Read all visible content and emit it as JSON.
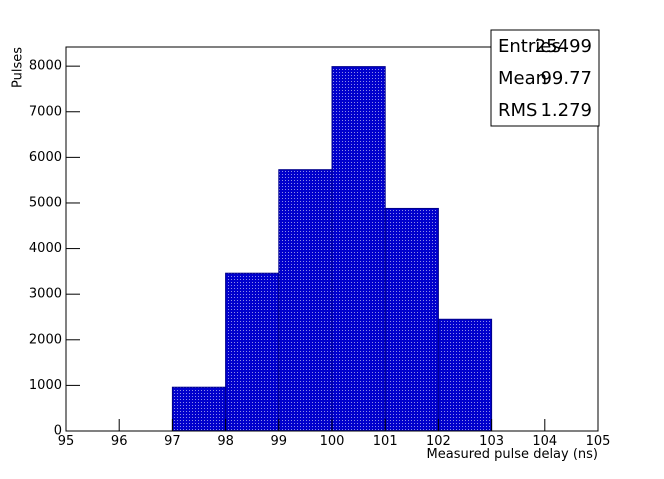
{
  "chart_data": {
    "type": "histogram",
    "x_label": "Measured pulse delay (ns)",
    "y_label": "Pulses",
    "bins": [
      95,
      96,
      97,
      98,
      99,
      100,
      101,
      102,
      103,
      104,
      105
    ],
    "values": [
      0,
      0,
      960,
      3460,
      5730,
      7990,
      4880,
      2450,
      0,
      0
    ],
    "color": "#0000cc",
    "edge_color": "#00008b",
    "xlim": [
      95,
      105
    ],
    "ylim": [
      0,
      8420
    ],
    "xticks": [
      95,
      96,
      97,
      98,
      99,
      100,
      101,
      102,
      103,
      104,
      105
    ],
    "yticks": [
      0,
      1000,
      2000,
      3000,
      4000,
      5000,
      6000,
      7000,
      8000
    ],
    "stats": [
      {
        "label": "Entries",
        "value": 25499
      },
      {
        "label": "Mean",
        "value": 99.77
      },
      {
        "label": "RMS",
        "value": 1.279
      }
    ]
  }
}
